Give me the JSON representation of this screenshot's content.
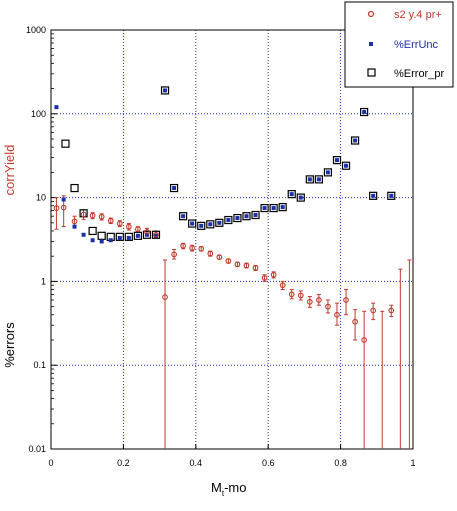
{
  "chart_data": {
    "type": "scatter",
    "xlabel": "M",
    "xlabel_sub": "t",
    "xlabel_suffix": "-mo",
    "ylabel_top": "corrYield",
    "ylabel_bottom": "%errors",
    "xlim": [
      0,
      1
    ],
    "ylim": [
      0.01,
      1000
    ],
    "y_scale": "log",
    "grid": true,
    "legend_position": "top-right",
    "x_ticks": [
      "0",
      "0.2",
      "0.4",
      "0.6",
      "0.8",
      "1"
    ],
    "x_tick_values": [
      0,
      0.2,
      0.4,
      0.6,
      0.8,
      1
    ],
    "y_ticks": [
      "0.01",
      "0.1",
      "1",
      "10",
      "100",
      "1000"
    ],
    "y_tick_values": [
      0.01,
      0.1,
      1,
      10,
      100,
      1000
    ],
    "series": [
      {
        "name": "s2 y.4 pr+",
        "color": "#c0392b",
        "marker": "circle",
        "points": [
          {
            "x": 0.015,
            "y": 7.5,
            "lo": 4.2,
            "hi": 10.0
          },
          {
            "x": 0.035,
            "y": 7.6,
            "lo": 4.5,
            "hi": 10.5
          },
          {
            "x": 0.065,
            "y": 5.2,
            "lo": 4.4,
            "hi": 6.0
          },
          {
            "x": 0.09,
            "y": 6.3,
            "lo": 5.5,
            "hi": 7.1
          },
          {
            "x": 0.115,
            "y": 6.1,
            "lo": 5.6,
            "hi": 6.6
          },
          {
            "x": 0.14,
            "y": 5.9,
            "lo": 5.4,
            "hi": 6.4
          },
          {
            "x": 0.165,
            "y": 5.3,
            "lo": 4.9,
            "hi": 5.7
          },
          {
            "x": 0.19,
            "y": 4.9,
            "lo": 4.5,
            "hi": 5.3
          },
          {
            "x": 0.215,
            "y": 4.5,
            "lo": 4.1,
            "hi": 4.9
          },
          {
            "x": 0.24,
            "y": 4.2,
            "lo": 3.9,
            "hi": 4.5
          },
          {
            "x": 0.265,
            "y": 3.9,
            "lo": 3.5,
            "hi": 4.3
          },
          {
            "x": 0.29,
            "y": 3.6,
            "lo": 3.3,
            "hi": 4.0
          },
          {
            "x": 0.315,
            "y": 0.65,
            "lo": 0.01,
            "hi": 1.8
          },
          {
            "x": 0.34,
            "y": 2.1,
            "lo": 1.85,
            "hi": 2.4
          },
          {
            "x": 0.365,
            "y": 2.65,
            "lo": 2.45,
            "hi": 2.85
          },
          {
            "x": 0.39,
            "y": 2.5,
            "lo": 2.3,
            "hi": 2.7
          },
          {
            "x": 0.415,
            "y": 2.45,
            "lo": 2.3,
            "hi": 2.6
          },
          {
            "x": 0.44,
            "y": 2.15,
            "lo": 2.0,
            "hi": 2.3
          },
          {
            "x": 0.465,
            "y": 1.95,
            "lo": 1.85,
            "hi": 2.05
          },
          {
            "x": 0.49,
            "y": 1.75,
            "lo": 1.65,
            "hi": 1.85
          },
          {
            "x": 0.515,
            "y": 1.6,
            "lo": 1.5,
            "hi": 1.7
          },
          {
            "x": 0.54,
            "y": 1.55,
            "lo": 1.45,
            "hi": 1.65
          },
          {
            "x": 0.565,
            "y": 1.45,
            "lo": 1.35,
            "hi": 1.55
          },
          {
            "x": 0.59,
            "y": 1.1,
            "lo": 1.0,
            "hi": 1.2
          },
          {
            "x": 0.615,
            "y": 1.2,
            "lo": 1.1,
            "hi": 1.3
          },
          {
            "x": 0.64,
            "y": 0.9,
            "lo": 0.8,
            "hi": 1.0
          },
          {
            "x": 0.665,
            "y": 0.7,
            "lo": 0.62,
            "hi": 0.8
          },
          {
            "x": 0.69,
            "y": 0.68,
            "lo": 0.6,
            "hi": 0.77
          },
          {
            "x": 0.715,
            "y": 0.57,
            "lo": 0.49,
            "hi": 0.66
          },
          {
            "x": 0.74,
            "y": 0.6,
            "lo": 0.52,
            "hi": 0.7
          },
          {
            "x": 0.765,
            "y": 0.5,
            "lo": 0.42,
            "hi": 0.6
          },
          {
            "x": 0.79,
            "y": 0.4,
            "lo": 0.3,
            "hi": 0.55
          },
          {
            "x": 0.815,
            "y": 0.6,
            "lo": 0.4,
            "hi": 0.8
          },
          {
            "x": 0.84,
            "y": 0.33,
            "lo": 0.2,
            "hi": 0.46
          },
          {
            "x": 0.865,
            "y": 0.2,
            "lo": 0.01,
            "hi": 0.44
          },
          {
            "x": 0.89,
            "y": 0.45,
            "lo": 0.35,
            "hi": 0.55
          },
          {
            "x": 0.915,
            "y": 0.01,
            "lo": 0.01,
            "hi": 0.44
          },
          {
            "x": 0.94,
            "y": 0.45,
            "lo": 0.38,
            "hi": 0.52
          },
          {
            "x": 0.965,
            "y": 0.01,
            "lo": 0.01,
            "hi": 1.4
          },
          {
            "x": 0.99,
            "y": 0.01,
            "lo": 0.01,
            "hi": 1.8
          }
        ]
      },
      {
        "name": "%ErrUnc",
        "color": "#1a2fa8",
        "marker": "dot",
        "points": [
          {
            "x": 0.015,
            "y": 120
          },
          {
            "x": 0.035,
            "y": 9.5
          },
          {
            "x": 0.065,
            "y": 4.5
          },
          {
            "x": 0.09,
            "y": 3.6
          },
          {
            "x": 0.115,
            "y": 3.1
          },
          {
            "x": 0.14,
            "y": 3.0
          },
          {
            "x": 0.165,
            "y": 3.1
          },
          {
            "x": 0.19,
            "y": 3.3
          },
          {
            "x": 0.215,
            "y": 3.3
          },
          {
            "x": 0.24,
            "y": 3.5
          },
          {
            "x": 0.265,
            "y": 3.6
          },
          {
            "x": 0.29,
            "y": 3.5
          },
          {
            "x": 0.315,
            "y": 190
          },
          {
            "x": 0.34,
            "y": 13
          },
          {
            "x": 0.365,
            "y": 6
          },
          {
            "x": 0.39,
            "y": 4.9
          },
          {
            "x": 0.415,
            "y": 4.6
          },
          {
            "x": 0.44,
            "y": 4.8
          },
          {
            "x": 0.465,
            "y": 5.0
          },
          {
            "x": 0.49,
            "y": 5.4
          },
          {
            "x": 0.515,
            "y": 5.7
          },
          {
            "x": 0.54,
            "y": 6.0
          },
          {
            "x": 0.565,
            "y": 6.2
          },
          {
            "x": 0.59,
            "y": 7.5
          },
          {
            "x": 0.615,
            "y": 7.5
          },
          {
            "x": 0.64,
            "y": 7.7
          },
          {
            "x": 0.665,
            "y": 11
          },
          {
            "x": 0.69,
            "y": 10
          },
          {
            "x": 0.715,
            "y": 16.5
          },
          {
            "x": 0.74,
            "y": 16.5
          },
          {
            "x": 0.765,
            "y": 20
          },
          {
            "x": 0.79,
            "y": 28
          },
          {
            "x": 0.815,
            "y": 24
          },
          {
            "x": 0.84,
            "y": 48
          },
          {
            "x": 0.865,
            "y": 105
          },
          {
            "x": 0.89,
            "y": 10.5
          },
          {
            "x": 0.94,
            "y": 10.5
          }
        ]
      },
      {
        "name": "%Error_pr",
        "color": "#000000",
        "marker": "square",
        "points": [
          {
            "x": 0.04,
            "y": 44
          },
          {
            "x": 0.065,
            "y": 13
          },
          {
            "x": 0.09,
            "y": 6.5
          },
          {
            "x": 0.115,
            "y": 4.0
          },
          {
            "x": 0.14,
            "y": 3.5
          },
          {
            "x": 0.165,
            "y": 3.4
          },
          {
            "x": 0.19,
            "y": 3.4
          },
          {
            "x": 0.215,
            "y": 3.4
          },
          {
            "x": 0.24,
            "y": 3.5
          },
          {
            "x": 0.265,
            "y": 3.6
          },
          {
            "x": 0.29,
            "y": 3.6
          },
          {
            "x": 0.315,
            "y": 190
          },
          {
            "x": 0.34,
            "y": 13
          },
          {
            "x": 0.365,
            "y": 6.0
          },
          {
            "x": 0.39,
            "y": 4.9
          },
          {
            "x": 0.415,
            "y": 4.6
          },
          {
            "x": 0.44,
            "y": 4.8
          },
          {
            "x": 0.465,
            "y": 5.0
          },
          {
            "x": 0.49,
            "y": 5.4
          },
          {
            "x": 0.515,
            "y": 5.7
          },
          {
            "x": 0.54,
            "y": 6.0
          },
          {
            "x": 0.565,
            "y": 6.2
          },
          {
            "x": 0.59,
            "y": 7.5
          },
          {
            "x": 0.615,
            "y": 7.5
          },
          {
            "x": 0.64,
            "y": 7.7
          },
          {
            "x": 0.665,
            "y": 11
          },
          {
            "x": 0.69,
            "y": 10
          },
          {
            "x": 0.715,
            "y": 16.5
          },
          {
            "x": 0.74,
            "y": 16.5
          },
          {
            "x": 0.765,
            "y": 20
          },
          {
            "x": 0.79,
            "y": 28
          },
          {
            "x": 0.815,
            "y": 24
          },
          {
            "x": 0.84,
            "y": 48
          },
          {
            "x": 0.865,
            "y": 105
          },
          {
            "x": 0.89,
            "y": 10.5
          },
          {
            "x": 0.94,
            "y": 10.5
          }
        ]
      }
    ]
  },
  "colors": {
    "grid": "#1a2fa8",
    "ylabel_top": "#c0392b",
    "ylabel_bottom": "#000000"
  }
}
